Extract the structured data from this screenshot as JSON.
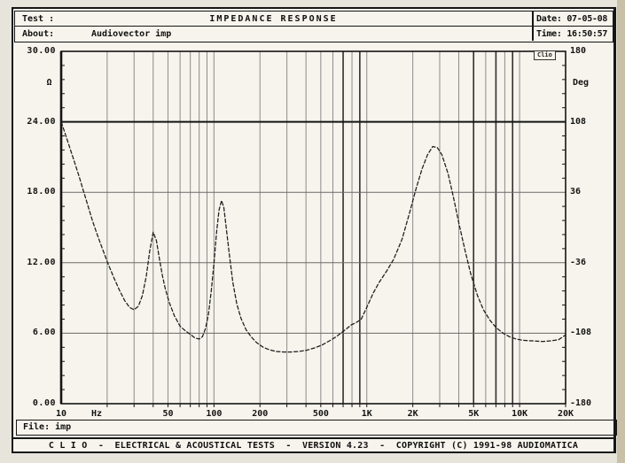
{
  "header": {
    "test_label": "Test :",
    "title": "IMPEDANCE RESPONSE",
    "about_label": "About:",
    "about_value": "Audiovector imp",
    "date_label": "Date:",
    "date_value": "07-05-08",
    "time_label": "Time:",
    "time_value": "16:50:57",
    "date_text": "Date: 07-05-08",
    "time_text": "Time: 16:50:57"
  },
  "chart": {
    "badge": "Clio",
    "grid_color": "#8c8c8c",
    "dark_grid_color": "#2f2f2f",
    "bold_line_color": "#141414",
    "curve_color": "#1b1b1b",
    "frame_color": "#141414",
    "dark_gridlines": [
      700,
      900,
      5000,
      7000,
      9000
    ]
  },
  "chart_data": {
    "type": "line",
    "title": "IMPEDANCE RESPONSE",
    "x_axis": {
      "unit": "Hz",
      "scale": "log",
      "min": 10,
      "max": 20000,
      "tick_values": [
        10,
        50,
        100,
        200,
        500,
        1000,
        2000,
        5000,
        10000,
        20000
      ],
      "tick_labels": [
        "10",
        "50",
        "100",
        "200",
        "500",
        "1K",
        "2K",
        "5K",
        "10K",
        "20K"
      ]
    },
    "y_left": {
      "unit": "Ω",
      "min": 0,
      "max": 30,
      "tick_values": [
        30,
        24,
        18,
        12,
        6,
        0
      ],
      "tick_labels": [
        "30.00",
        "24.00",
        "18.00",
        "12.00",
        "6.00",
        "0.00"
      ],
      "bold_gridline_at": 24,
      "gridlines": [
        24,
        18,
        12,
        6
      ]
    },
    "y_right": {
      "unit": "Deg",
      "min": -180,
      "max": 180,
      "tick_values": [
        180,
        108,
        36,
        -36,
        -108,
        -180
      ],
      "tick_labels": [
        "180",
        "108",
        "36",
        "-36",
        "-108",
        "-180"
      ]
    },
    "legend": [],
    "grid": true,
    "series": [
      {
        "name": "impedance-magnitude",
        "points": [
          [
            10,
            24.0
          ],
          [
            11,
            22.4
          ],
          [
            12,
            20.9
          ],
          [
            13,
            19.5
          ],
          [
            14,
            18.1
          ],
          [
            15,
            16.8
          ],
          [
            16,
            15.6
          ],
          [
            17,
            14.6
          ],
          [
            18,
            13.7
          ],
          [
            19,
            12.9
          ],
          [
            20,
            12.1
          ],
          [
            22,
            10.8
          ],
          [
            24,
            9.7
          ],
          [
            26,
            8.8
          ],
          [
            28,
            8.2
          ],
          [
            30,
            8.0
          ],
          [
            32,
            8.3
          ],
          [
            34,
            9.2
          ],
          [
            36,
            10.8
          ],
          [
            38,
            13.0
          ],
          [
            40,
            14.6
          ],
          [
            42,
            13.9
          ],
          [
            44,
            12.3
          ],
          [
            46,
            10.9
          ],
          [
            48,
            9.8
          ],
          [
            51,
            8.6
          ],
          [
            55,
            7.5
          ],
          [
            60,
            6.6
          ],
          [
            65,
            6.2
          ],
          [
            70,
            5.9
          ],
          [
            75,
            5.6
          ],
          [
            80,
            5.5
          ],
          [
            84,
            5.7
          ],
          [
            88,
            6.4
          ],
          [
            92,
            7.6
          ],
          [
            96,
            9.6
          ],
          [
            100,
            12.0
          ],
          [
            104,
            14.6
          ],
          [
            108,
            16.5
          ],
          [
            112,
            17.3
          ],
          [
            116,
            16.7
          ],
          [
            120,
            15.1
          ],
          [
            126,
            12.7
          ],
          [
            133,
            10.3
          ],
          [
            141,
            8.5
          ],
          [
            150,
            7.3
          ],
          [
            162,
            6.3
          ],
          [
            175,
            5.7
          ],
          [
            190,
            5.2
          ],
          [
            210,
            4.8
          ],
          [
            230,
            4.6
          ],
          [
            255,
            4.45
          ],
          [
            285,
            4.4
          ],
          [
            320,
            4.4
          ],
          [
            360,
            4.45
          ],
          [
            405,
            4.55
          ],
          [
            455,
            4.75
          ],
          [
            510,
            5.0
          ],
          [
            570,
            5.35
          ],
          [
            630,
            5.7
          ],
          [
            690,
            6.1
          ],
          [
            740,
            6.4
          ],
          [
            790,
            6.7
          ],
          [
            850,
            6.9
          ],
          [
            920,
            7.2
          ],
          [
            1000,
            8.2
          ],
          [
            1100,
            9.4
          ],
          [
            1200,
            10.3
          ],
          [
            1350,
            11.3
          ],
          [
            1500,
            12.3
          ],
          [
            1700,
            14.0
          ],
          [
            1900,
            16.2
          ],
          [
            2100,
            18.3
          ],
          [
            2300,
            20.0
          ],
          [
            2500,
            21.2
          ],
          [
            2700,
            21.9
          ],
          [
            2900,
            21.8
          ],
          [
            3100,
            21.2
          ],
          [
            3400,
            19.6
          ],
          [
            3700,
            17.5
          ],
          [
            4000,
            15.4
          ],
          [
            4400,
            13.0
          ],
          [
            4800,
            11.0
          ],
          [
            5300,
            9.2
          ],
          [
            5800,
            8.0
          ],
          [
            6400,
            7.1
          ],
          [
            7000,
            6.5
          ],
          [
            7800,
            6.0
          ],
          [
            8600,
            5.7
          ],
          [
            9500,
            5.5
          ],
          [
            10500,
            5.4
          ],
          [
            12000,
            5.35
          ],
          [
            14000,
            5.3
          ],
          [
            16000,
            5.35
          ],
          [
            18000,
            5.45
          ],
          [
            20000,
            5.85
          ]
        ]
      }
    ]
  },
  "file_bar": {
    "text": "File: imp"
  },
  "footer": {
    "text": "C L I O  -  ELECTRICAL & ACOUSTICAL TESTS  -  VERSION 4.23  -  COPYRIGHT (C) 1991-98 AUDIOMATICA"
  }
}
